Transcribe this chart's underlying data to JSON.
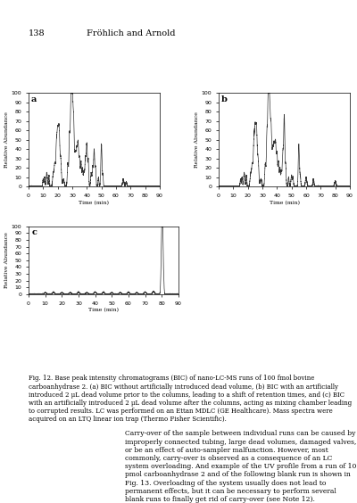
{
  "page_number": "138",
  "header_text": "Fröhlich and Arnold",
  "fig_caption": "Fig. 12. Base peak intensity chromatograms (BIC) of nano-LC-MS runs of 100 fmol bovine carboanhydrase 2. (a) BIC without artificially introduced dead volume, (b) BIC with an artificially introduced 2 μL dead volume prior to the columns, leading to a shift of retention times, and (c) BIC with an artificially introduced 2 μL dead volume after the columns, acting as mixing chamber leading to corrupted results. LC was performed on an Ettan MDLC (GE Healthcare). Mass spectra were acquired on an LTQ linear ion trap (Thermo Fisher Scientific).",
  "body_text": "Carry-over of the sample between individual runs can be caused by improperly connected tubing, large dead volumes, damaged valves, or be an effect of auto-sampler malfunction. However, most commonly, carry-over is observed as a consequence of an LC system overloading. And example of the UV profile from a run of 10 pmol carboanhydrase 2 and of the following blank run is shown in Fig. 13. Overloading of the system usually does not lead to permanent effects, but it can be necessary to perform several blank runs to finally get rid of carry-over (see Note 12).",
  "ylabel": "Relative Abundance",
  "xlabel": "Time (min)",
  "ylim": [
    0,
    100
  ],
  "xlim": [
    0,
    90
  ],
  "xticks": [
    0,
    10,
    20,
    30,
    40,
    50,
    60,
    70,
    80,
    90
  ],
  "yticks": [
    0,
    10,
    20,
    30,
    40,
    50,
    60,
    70,
    80,
    90,
    100
  ],
  "background": "#ffffff",
  "line_color": "#333333"
}
